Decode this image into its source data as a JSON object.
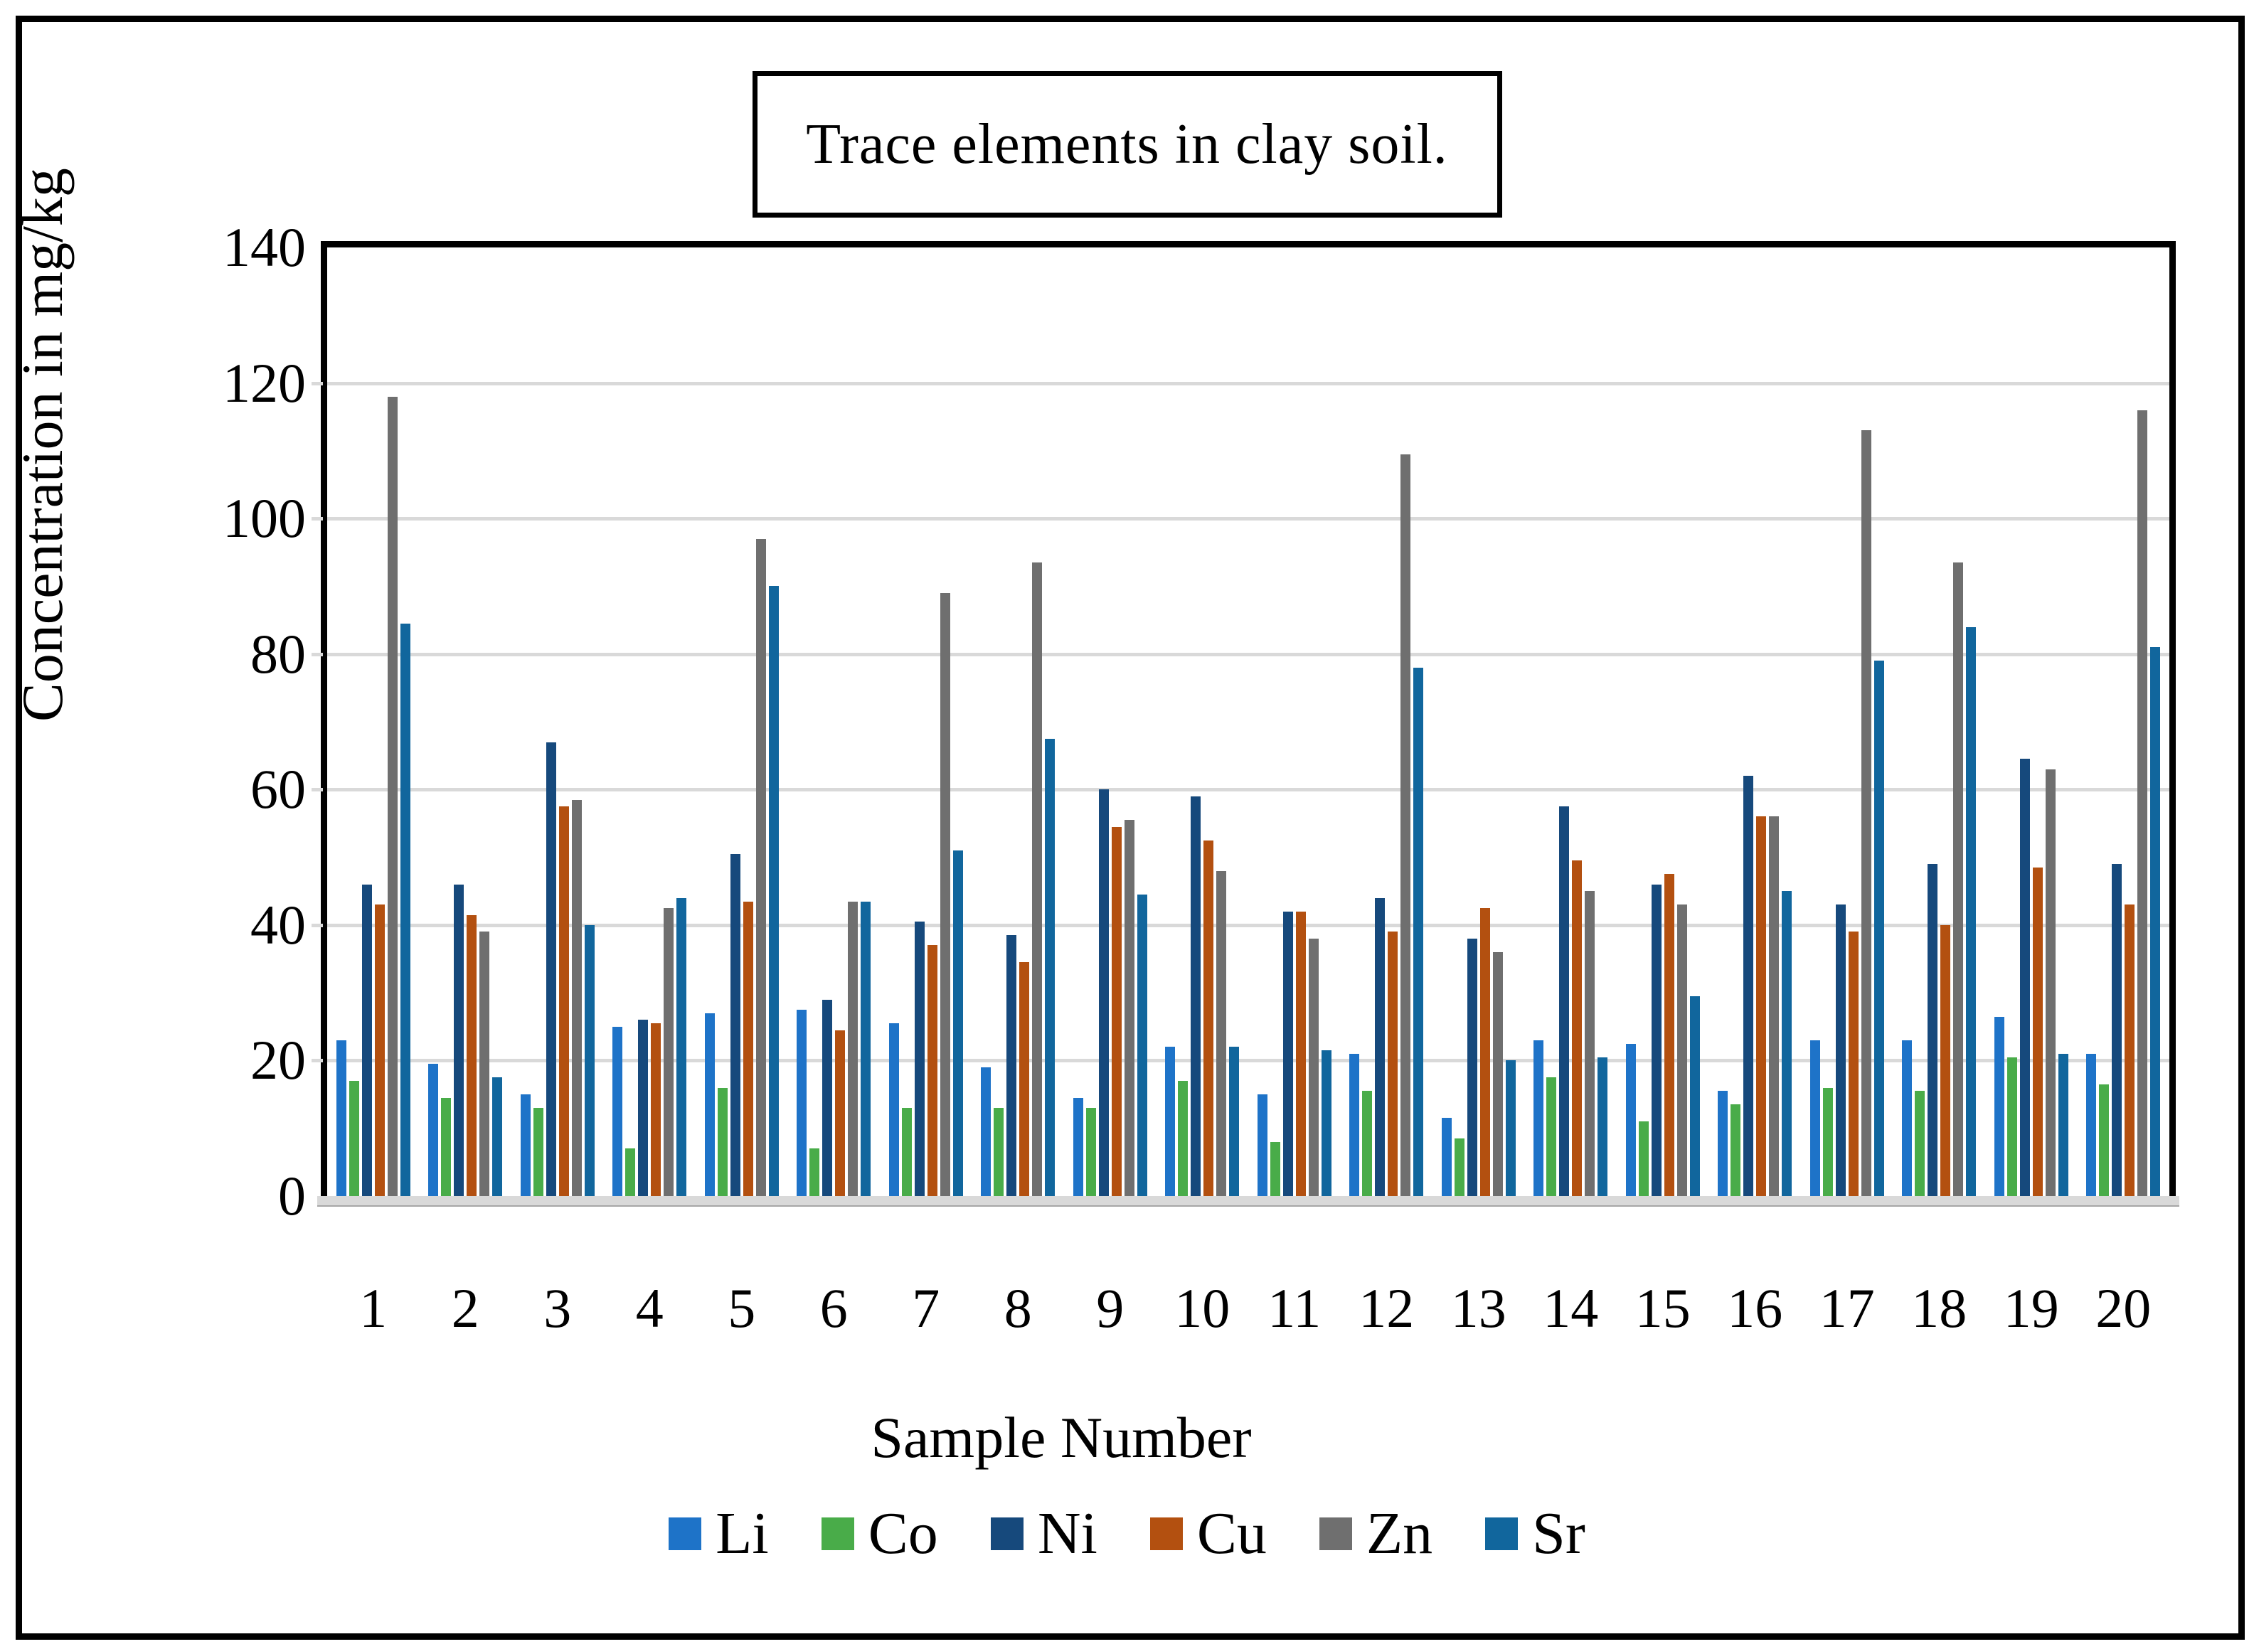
{
  "chart_data": {
    "type": "bar",
    "title": "Trace elements in clay soil.",
    "xlabel": "Sample Number",
    "ylabel": "Concentration in mg/kg",
    "ylim": [
      0,
      140
    ],
    "ytick_step": 20,
    "grid": "horizontal-gray",
    "gridline_color": "#d9d9d9",
    "legend_position": "bottom",
    "frame_color": "#000000",
    "categories": [
      "1",
      "2",
      "3",
      "4",
      "5",
      "6",
      "7",
      "8",
      "9",
      "10",
      "11",
      "12",
      "13",
      "14",
      "15",
      "16",
      "17",
      "18",
      "19",
      "20"
    ],
    "series": [
      {
        "name": "Li",
        "color": "#1e73c8",
        "values": [
          23,
          19.5,
          15,
          25,
          27,
          27.5,
          25.5,
          19,
          14.5,
          22,
          15,
          21,
          11.5,
          23,
          22.5,
          15.5,
          23,
          23,
          26.5,
          21
        ]
      },
      {
        "name": "Co",
        "color": "#49ac49",
        "values": [
          17,
          14.5,
          13,
          7,
          16,
          7,
          13,
          13,
          13,
          17,
          8,
          15.5,
          8.5,
          17.5,
          11,
          13.5,
          16,
          15.5,
          20.5,
          16.5
        ]
      },
      {
        "name": "Ni",
        "color": "#16497c",
        "values": [
          46,
          46,
          67,
          26,
          50.5,
          29,
          40.5,
          38.5,
          60,
          59,
          42,
          44,
          38,
          57.5,
          46,
          62,
          43,
          49,
          64.5,
          49
        ]
      },
      {
        "name": "Cu",
        "color": "#b35010",
        "values": [
          43,
          41.5,
          57.5,
          25.5,
          43.5,
          24.5,
          37,
          34.5,
          54.5,
          52.5,
          42,
          39,
          42.5,
          49.5,
          47.5,
          56,
          39,
          40,
          48.5,
          43
        ]
      },
      {
        "name": "Zn",
        "color": "#6f6f6f",
        "values": [
          118,
          39,
          58.5,
          42.5,
          97,
          43.5,
          89,
          93.5,
          55.5,
          48,
          38,
          109.5,
          36,
          45,
          43,
          56,
          113,
          93.5,
          63,
          116
        ]
      },
      {
        "name": "Sr",
        "color": "#11669d",
        "values": [
          84.5,
          17.5,
          40,
          44,
          90,
          43.5,
          51,
          67.5,
          44.5,
          22,
          21.5,
          78,
          20,
          20.5,
          29.5,
          45,
          79,
          84,
          21,
          81
        ]
      }
    ]
  }
}
